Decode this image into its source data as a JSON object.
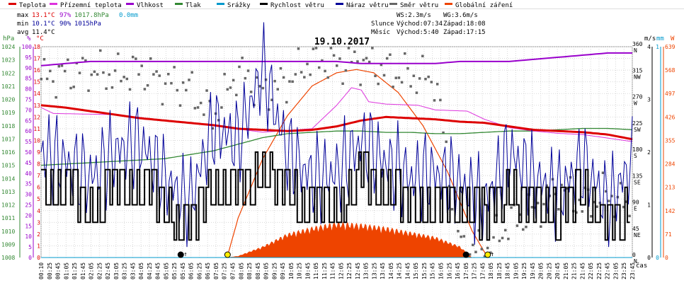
{
  "chart_data": {
    "type": "line",
    "title": "19.10.2017",
    "legend": [
      {
        "label": "Teplota",
        "color": "#dd0000"
      },
      {
        "label": "Přízemní teplota",
        "color": "#dd33dd"
      },
      {
        "label": "Vlhkost",
        "color": "#9900cc"
      },
      {
        "label": "Tlak",
        "color": "#338833"
      },
      {
        "label": "Srážky",
        "color": "#0099cc"
      },
      {
        "label": "Rychlost větru",
        "color": "#000000"
      },
      {
        "label": "Náraz větru",
        "color": "#000099"
      },
      {
        "label": "Směr větru",
        "color": "#666666"
      },
      {
        "label": "Globální záření",
        "color": "#ee4400"
      }
    ],
    "stats": {
      "max_label": "max",
      "max_temp": "13.1°C",
      "max_hum": "97%",
      "max_press": "1017.8hPa",
      "max_rain": "0.0mm",
      "min_label": "min",
      "min_temp": "10.1°C",
      "min_hum": "90%",
      "min_press": "1015hPa",
      "avg_label": "avg",
      "avg_temp": "11.4°C"
    },
    "info": {
      "ws": "WS:2.3m/s",
      "wg": "WG:3.6m/s",
      "sun_label": "Slunce",
      "sun_rise": "Východ:07:34",
      "sun_set": "Západ:18:08",
      "moon_label": "Měsíc",
      "moon_rise": "Východ:5:40",
      "moon_set": "Západ:17:15"
    },
    "axes": {
      "hpa": {
        "unit": "hPa",
        "ticks": [
          "1008",
          "1009",
          "1010",
          "1011",
          "1012",
          "1013",
          "1014",
          "1015",
          "1016",
          "1017",
          "1018",
          "1019",
          "1020",
          "1021",
          "1022",
          "1023",
          "1024"
        ]
      },
      "percent": {
        "unit": "%",
        "ticks": [
          "0",
          "5",
          "10",
          "15",
          "20",
          "25",
          "30",
          "35",
          "40",
          "45",
          "50",
          "55",
          "60",
          "65",
          "70",
          "75",
          "80",
          "85",
          "90",
          "95",
          "100"
        ]
      },
      "celsius": {
        "unit": "°C",
        "ticks": [
          "0",
          "1",
          "2",
          "3",
          "4",
          "5",
          "6",
          "7",
          "8",
          "9",
          "10",
          "11",
          "12",
          "13",
          "14",
          "15",
          "16",
          "17",
          "18"
        ]
      },
      "direction": {
        "unit": "°",
        "ticks": [
          {
            "deg": "0",
            "dir": "N"
          },
          {
            "deg": "45",
            "dir": "NE"
          },
          {
            "deg": "90",
            "dir": "E"
          },
          {
            "deg": "135",
            "dir": "SE"
          },
          {
            "deg": "180",
            "dir": "S"
          },
          {
            "deg": "225",
            "dir": "SW"
          },
          {
            "deg": "270",
            "dir": "W"
          },
          {
            "deg": "315",
            "dir": "NW"
          },
          {
            "deg": "360",
            "dir": "N"
          }
        ]
      },
      "wind": {
        "unit": "m/s",
        "ticks": [
          "0",
          "1",
          "2",
          "3",
          "4"
        ]
      },
      "rain": {
        "unit": "mm",
        "ticks": [
          "0",
          "1"
        ]
      },
      "radiation": {
        "unit": "W",
        "ticks": [
          "0",
          "71",
          "142",
          "213",
          "284",
          "355",
          "426",
          "497",
          "568",
          "639"
        ]
      },
      "time": {
        "unit": "čas",
        "ticks": [
          "00:10",
          "00:25",
          "00:45",
          "01:05",
          "01:25",
          "01:45",
          "02:05",
          "02:25",
          "02:45",
          "03:05",
          "03:25",
          "03:45",
          "04:05",
          "04:25",
          "04:45",
          "05:05",
          "05:25",
          "05:45",
          "06:05",
          "06:25",
          "06:45",
          "07:05",
          "07:25",
          "07:45",
          "08:05",
          "08:25",
          "08:45",
          "09:05",
          "09:25",
          "09:45",
          "10:05",
          "10:25",
          "10:45",
          "11:05",
          "11:25",
          "11:45",
          "12:05",
          "12:25",
          "12:45",
          "13:05",
          "13:25",
          "13:45",
          "14:05",
          "14:25",
          "14:45",
          "15:05",
          "15:25",
          "15:45",
          "16:05",
          "16:25",
          "16:45",
          "17:05",
          "17:25",
          "17:45",
          "18:05",
          "18:25",
          "18:45",
          "19:05",
          "19:25",
          "19:45",
          "20:05",
          "20:25",
          "20:45",
          "21:05",
          "21:25",
          "21:45",
          "22:05",
          "22:25",
          "22:45",
          "23:05",
          "23:25",
          "23:45"
        ]
      }
    },
    "series": [
      {
        "name": "Teplota",
        "unit": "°C",
        "x": [
          0,
          1,
          2,
          3,
          4,
          5,
          6,
          7,
          8,
          9,
          10,
          11,
          12,
          13,
          14,
          15,
          16,
          17,
          18,
          19,
          20,
          21,
          22,
          23,
          24
        ],
        "values": [
          13.0,
          12.8,
          12.5,
          12.2,
          11.9,
          11.7,
          11.5,
          11.3,
          11.0,
          10.9,
          10.8,
          10.9,
          11.2,
          11.7,
          12.0,
          11.9,
          11.8,
          11.6,
          11.5,
          11.2,
          10.9,
          10.8,
          10.7,
          10.5,
          10.1
        ]
      },
      {
        "name": "Přízemní teplota",
        "unit": "°C",
        "x": [
          0,
          0.5,
          3,
          6,
          9,
          11,
          12,
          12.6,
          13,
          13.3,
          14,
          15.3,
          16,
          17.3,
          18,
          19,
          20,
          21,
          22,
          23,
          24
        ],
        "values": [
          12.8,
          12.3,
          12.2,
          11.5,
          10.7,
          11.0,
          13.0,
          14.5,
          14.3,
          13.3,
          13.1,
          13.0,
          12.6,
          12.5,
          11.8,
          11.1,
          10.8,
          10.6,
          10.5,
          10.2,
          9.9
        ]
      },
      {
        "name": "Vlhkost",
        "unit": "%",
        "x": [
          0,
          1,
          2,
          3,
          4,
          5,
          6,
          7,
          8,
          9,
          10,
          11,
          12,
          13,
          14,
          15,
          16,
          17,
          18,
          19,
          20,
          21,
          22,
          23,
          24
        ],
        "values": [
          91,
          92,
          93,
          93,
          93,
          93,
          93,
          93,
          93,
          93,
          93,
          93,
          93,
          92,
          92,
          92,
          92,
          93,
          93,
          93,
          94,
          95,
          96,
          97,
          97
        ]
      },
      {
        "name": "Tlak",
        "unit": "hPa",
        "x": [
          0,
          1,
          2,
          3,
          4,
          5,
          6,
          7,
          8,
          9,
          10,
          11,
          12,
          13,
          14,
          15,
          16,
          17,
          18,
          19,
          20,
          21,
          22,
          23,
          24
        ],
        "values": [
          1015.0,
          1015.1,
          1015.2,
          1015.3,
          1015.4,
          1015.5,
          1015.8,
          1016.1,
          1016.6,
          1017.1,
          1017.4,
          1017.5,
          1017.6,
          1017.6,
          1017.5,
          1017.5,
          1017.4,
          1017.4,
          1017.5,
          1017.6,
          1017.6,
          1017.7,
          1017.8,
          1017.8,
          1017.7
        ]
      },
      {
        "name": "Srážky",
        "unit": "mm",
        "x": [
          0,
          24
        ],
        "values": [
          0.0,
          0.0
        ]
      },
      {
        "name": "Rychlost větru",
        "unit": "m/s",
        "x": [
          0,
          1,
          2,
          3,
          4,
          5,
          6,
          7,
          8,
          9,
          10,
          11,
          12,
          13,
          14,
          15,
          16,
          17,
          18,
          19,
          20,
          21,
          22,
          23,
          24
        ],
        "values": [
          1.5,
          1.3,
          1.0,
          1.3,
          1.5,
          1.0,
          0.6,
          1.3,
          1.3,
          1.6,
          1.3,
          1.0,
          1.0,
          1.6,
          1.3,
          1.0,
          1.0,
          1.0,
          0.8,
          1.3,
          1.0,
          0.8,
          1.3,
          0.6,
          1.0
        ]
      },
      {
        "name": "Náraz větru",
        "unit": "m/s",
        "x": [
          0,
          1,
          2,
          3,
          4,
          5,
          6,
          7,
          8,
          9,
          10,
          11,
          12,
          13,
          14,
          15,
          16,
          17,
          18,
          19,
          20,
          21,
          22,
          23,
          24
        ],
        "values": [
          2.0,
          1.8,
          1.5,
          2.0,
          2.2,
          1.5,
          1.0,
          2.5,
          2.2,
          3.6,
          2.0,
          1.5,
          1.6,
          2.2,
          1.8,
          1.5,
          1.6,
          1.4,
          1.0,
          2.0,
          1.5,
          1.2,
          1.8,
          1.0,
          1.8
        ]
      },
      {
        "name": "Směr větru",
        "unit": "°",
        "x": [
          0,
          1,
          2,
          3,
          4,
          5,
          6,
          7,
          8,
          9,
          10,
          11,
          12,
          13,
          14,
          15,
          16,
          17,
          18,
          19,
          20,
          21,
          22,
          23,
          24
        ],
        "values": [
          305,
          315,
          320,
          310,
          320,
          300,
          290,
          240,
          320,
          280,
          300,
          340,
          330,
          335,
          320,
          310,
          305,
          20,
          10,
          60,
          80,
          120,
          90,
          110,
          80
        ]
      },
      {
        "name": "Globální záření",
        "unit": "W",
        "x": [
          7.5,
          8,
          9,
          10,
          11,
          12,
          13,
          14,
          15,
          16,
          17,
          17.5
        ],
        "values": [
          0,
          5,
          35,
          75,
          95,
          110,
          105,
          95,
          80,
          65,
          35,
          0
        ]
      }
    ],
    "max_radiation_curve": {
      "x": [
        7.55,
        8,
        9,
        10,
        11,
        12,
        12.8,
        13.5,
        14.5,
        15.5,
        16.5,
        17.5,
        18.13
      ],
      "values": [
        0,
        120,
        300,
        430,
        520,
        560,
        570,
        560,
        500,
        400,
        260,
        80,
        0
      ]
    },
    "markers": {
      "sunrise": 7.57,
      "sunset": 18.13,
      "moonrise": 5.67,
      "moonset": 17.25
    },
    "ylim": {
      "hpa": [
        1008,
        1024
      ],
      "percent": [
        0,
        100
      ],
      "celsius": [
        0,
        18
      ],
      "direction": [
        0,
        360
      ],
      "wind": [
        0,
        4
      ],
      "rain": [
        0,
        1
      ],
      "radiation": [
        0,
        639
      ]
    },
    "xlim": [
      0,
      24
    ]
  }
}
